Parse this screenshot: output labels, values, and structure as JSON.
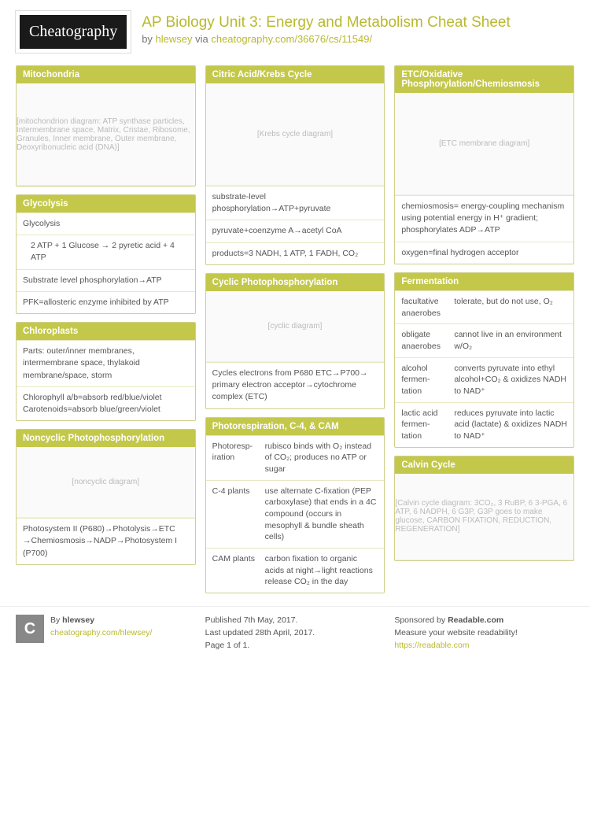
{
  "header": {
    "logo": "Cheatography",
    "title": "AP Biology Unit 3: Energy and Metabolism Cheat Sheet",
    "byline_prefix": "by ",
    "author": "hlewsey",
    "byline_mid": " via ",
    "url": "cheatography.com/36676/cs/11549/"
  },
  "colors": {
    "accent": "#c3c84a",
    "accent_text": "#ffffff",
    "link": "#b8b92e",
    "body_text": "#555555",
    "border": "#cfd08a"
  },
  "columns": [
    [
      {
        "title": "Mitochondria",
        "image": {
          "h": "tall",
          "label": "[mitochondrion diagram: ATP synthase particles, Intermembrane space, Matrix, Cristae, Ribosome, Granules, Inner membrane, Outer membrane, Deoxyribonucleic acid (DNA)]"
        }
      },
      {
        "title": "Glycolysis",
        "rows": [
          "Glycolysis",
          {
            "indent": true,
            "text": "2 ATP + 1 Glucose → 2 pyretic acid + 4 ATP"
          },
          "Substrate level phosphorylation→ATP",
          "PFK=allosteric enzyme inhibited by ATP"
        ]
      },
      {
        "title": "Chloroplasts",
        "rows": [
          "Parts: outer/inner membranes, intermembrane space, thylakoid membrane/space, storm",
          "Chlorophyll a/b=absorb red/blue/violet Carotenoids=absorb blue/green/violet"
        ]
      },
      {
        "title": "Noncyclic Photophosphorylation",
        "image": {
          "h": "short",
          "label": "[noncyclic diagram]"
        },
        "rows": [
          "Photosystem II (P680)→Photolysis→ETC →Chemiosmosis→NADP→Photosystem I (P700)"
        ]
      }
    ],
    [
      {
        "title": "Citric Acid/Krebs Cycle",
        "image": {
          "h": "tall",
          "label": "[Krebs cycle diagram]"
        },
        "rows": [
          "substrate-level phosphorylation→ATP+pyruvate",
          "pyruvate+coenzyme A→acetyl CoA",
          "products=3 NADH, 1 ATP, 1 FADH, CO₂"
        ]
      },
      {
        "title": "Cyclic Photophosphorylation",
        "image": {
          "h": "short",
          "label": "[cyclic diagram]"
        },
        "rows": [
          "Cycles electrons from P680 ETC→P700→ primary electron acceptor→cytochrome complex (ETC)"
        ]
      },
      {
        "title": "Photorespiration, C-4, & CAM",
        "kv": [
          {
            "k": "Photoresp-iration",
            "v": "rubisco binds with O₂ instead of CO₂; produces no ATP or sugar"
          },
          {
            "k": "C-4 plants",
            "v": "use alternate C-fixation (PEP carboxylase) that ends in a 4C compound (occurs in mesophyll & bundle sheath cells)"
          },
          {
            "k": "CAM plants",
            "v": "carbon fixation to organic acids at night→light reactions release CO₂ in the day"
          }
        ]
      }
    ],
    [
      {
        "title": "ETC/Oxidative Phosphorylation/Chemiosmosis",
        "image": {
          "h": "tall",
          "label": "[ETC membrane diagram]"
        },
        "rows": [
          "chemiosmosis= energy-coupling mechanism using potential energy in H⁺ gradient; phosphorylates ADP→ATP",
          "oxygen=final hydrogen acceptor"
        ]
      },
      {
        "title": "Fermentation",
        "kv": [
          {
            "k": "facultative anaerobes",
            "v": "tolerate, but do not use, O₂"
          },
          {
            "k": "obligate anaerobes",
            "v": "cannot live in an environment w/O₂"
          },
          {
            "k": "alcohol fermen-tation",
            "v": "converts pyruvate into ethyl alcohol+CO₂ & oxidizes NADH to NAD⁺"
          },
          {
            "k": "lactic acid fermen-tation",
            "v": "reduces pyruvate into lactic acid (lactate) & oxidizes NADH to NAD⁺"
          }
        ]
      },
      {
        "title": "Calvin Cycle",
        "image": {
          "h": "",
          "label": "[Calvin cycle diagram: 3CO₂, 3 RuBP, 6 3-PGA, 6 ATP, 6 NADPH, 6 G3P, G3P goes to make glucose, CARBON FIXATION, REDUCTION, REGENERATION]"
        }
      }
    ]
  ],
  "footer": {
    "left": {
      "avatar": "C",
      "by_label": "By ",
      "author": "hlewsey",
      "link": "cheatography.com/hlewsey/"
    },
    "mid": {
      "l1": "Published 7th May, 2017.",
      "l2": "Last updated 28th April, 2017.",
      "l3": "Page 1 of 1."
    },
    "right": {
      "l1_a": "Sponsored by ",
      "l1_b": "Readable.com",
      "l2": "Measure your website readability!",
      "link": "https://readable.com"
    }
  }
}
